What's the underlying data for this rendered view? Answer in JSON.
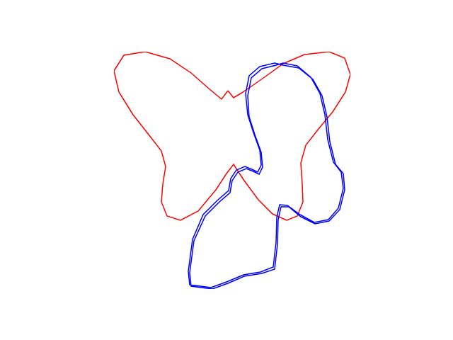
{
  "chart_data": {
    "type": "line",
    "tick_labels": false,
    "grid": false,
    "series": [
      {
        "color": "#ff0000",
        "x": [
          0.02,
          0.1,
          0.2,
          0.35,
          0.55,
          0.8,
          1.1,
          1.45,
          1.67,
          1.75,
          1.68,
          1.5,
          1.3,
          1.12,
          1.05,
          1.07,
          1.08,
          1.0,
          0.85,
          0.65,
          0.45,
          0.25,
          0.1,
          0.0,
          -0.15,
          -0.4,
          -0.65,
          -0.84,
          -0.92,
          -0.9,
          -0.86,
          -0.92,
          -1.1,
          -1.32,
          -1.52,
          -1.59,
          -1.45,
          -1.15,
          -0.8,
          -0.5,
          -0.25,
          -0.07,
          0.02
        ],
        "values": [
          1.12,
          1.02,
          1.08,
          1.18,
          1.32,
          1.5,
          1.63,
          1.67,
          1.58,
          1.35,
          1.1,
          0.82,
          0.58,
          0.35,
          0.1,
          -0.2,
          -0.45,
          -0.65,
          -0.71,
          -0.62,
          -0.42,
          -0.15,
          0.08,
          -0.05,
          -0.28,
          -0.58,
          -0.71,
          -0.65,
          -0.45,
          -0.2,
          0.05,
          0.27,
          0.5,
          0.78,
          1.1,
          1.4,
          1.62,
          1.67,
          1.57,
          1.37,
          1.15,
          1.0,
          1.12
        ]
      },
      {
        "color": "#0000ff",
        "x": [
          0.8,
          1.02,
          1.22,
          1.35,
          1.42,
          1.46,
          1.54,
          1.65,
          1.67,
          1.6,
          1.45,
          1.25,
          1.05,
          0.88,
          0.77,
          0.73,
          0.72,
          0.68,
          0.5,
          0.25,
          0.02,
          -0.2,
          -0.5,
          -0.52,
          -0.46,
          -0.3,
          -0.1,
          0.05,
          0.08,
          0.16,
          0.28,
          0.38,
          0.46,
          0.51,
          0.49,
          0.4,
          0.32,
          0.3,
          0.35,
          0.5,
          0.7,
          0.8,
          1.0,
          1.19,
          1.32,
          1.39,
          1.43,
          1.51,
          1.62,
          1.65,
          1.58,
          1.44,
          1.24,
          1.04,
          0.86,
          0.75,
          0.71,
          0.7,
          0.66,
          0.48,
          0.24,
          0.0,
          -0.22,
          -0.52,
          -0.54,
          -0.48,
          -0.33,
          -0.13,
          0.03,
          0.06,
          0.14,
          0.26,
          0.36,
          0.44,
          0.49,
          0.47,
          0.38,
          0.3,
          0.27,
          0.32,
          0.47,
          0.68,
          0.8
        ],
        "values": [
          1.48,
          1.44,
          1.28,
          1.05,
          0.75,
          0.4,
          0.08,
          -0.05,
          -0.28,
          -0.56,
          -0.72,
          -0.76,
          -0.66,
          -0.52,
          -0.52,
          -0.7,
          -1.05,
          -1.4,
          -1.46,
          -1.5,
          -1.6,
          -1.68,
          -1.64,
          -1.45,
          -1.0,
          -0.65,
          -0.45,
          -0.32,
          -0.15,
          -0.03,
          0.02,
          -0.02,
          -0.06,
          0.04,
          0.25,
          0.5,
          0.75,
          1.05,
          1.3,
          1.43,
          1.48,
          1.51,
          1.47,
          1.31,
          1.08,
          0.78,
          0.43,
          0.11,
          -0.03,
          -0.26,
          -0.54,
          -0.7,
          -0.74,
          -0.63,
          -0.5,
          -0.49,
          -0.67,
          -1.02,
          -1.37,
          -1.44,
          -1.48,
          -1.58,
          -1.66,
          -1.62,
          -1.43,
          -0.98,
          -0.63,
          -0.43,
          -0.29,
          -0.12,
          0.0,
          0.05,
          0.01,
          -0.03,
          0.07,
          0.28,
          0.53,
          0.78,
          1.08,
          1.33,
          1.46,
          1.51,
          1.48
        ]
      }
    ]
  }
}
